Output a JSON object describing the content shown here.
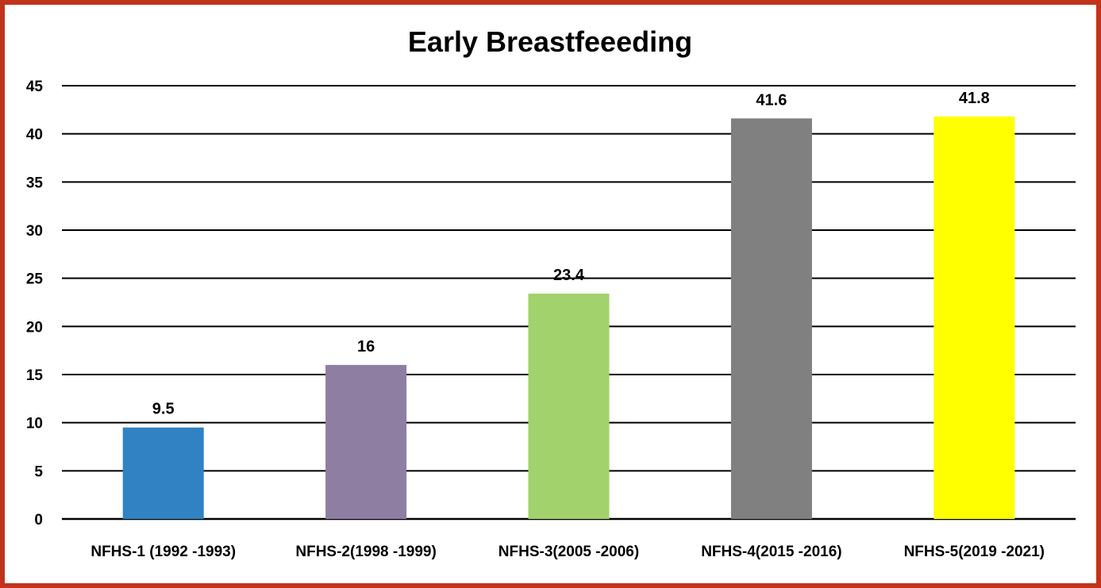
{
  "chart_data": {
    "type": "bar",
    "title": "Early Breastfeeeding",
    "categories": [
      "NFHS-1 (1992 -1993)",
      "NFHS-2(1998 -1999)",
      "NFHS-3(2005 -2006)",
      "NFHS-4(2015 -2016)",
      "NFHS-5(2019 -2021)"
    ],
    "values": [
      9.5,
      16,
      23.4,
      41.6,
      41.8
    ],
    "data_labels": [
      "9.5",
      "16",
      "23.4",
      "41.6",
      "41.8"
    ],
    "colors": [
      "#3182c2",
      "#8e7ea2",
      "#a1d26b",
      "#808080",
      "#ffff00"
    ],
    "yticks": [
      "0",
      "5",
      "10",
      "15",
      "20",
      "25",
      "30",
      "35",
      "40",
      "45"
    ],
    "ylim": [
      0,
      45
    ],
    "grid": true,
    "legend": "none",
    "xlabel": "",
    "ylabel": ""
  },
  "frame": {
    "border_color": "#c1331b"
  }
}
